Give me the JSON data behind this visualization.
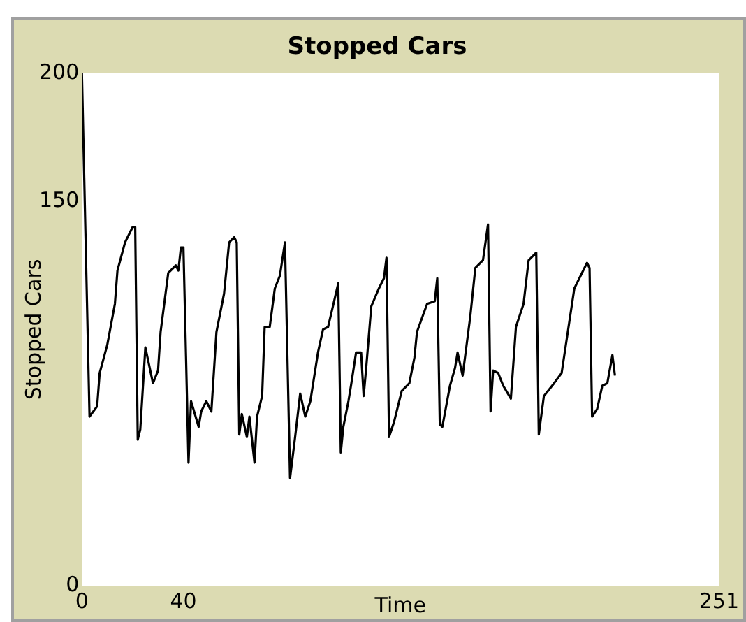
{
  "chart_data": {
    "type": "line",
    "title": "Stopped Cars",
    "xlabel": "Time",
    "ylabel": "Stopped Cars",
    "xlim": [
      0,
      251
    ],
    "xticks": [
      0,
      40,
      251
    ],
    "ylim": [
      0,
      200
    ],
    "yticks": [
      0,
      150,
      200
    ],
    "grid": false,
    "legend": false,
    "marker": "none",
    "line_style": "solid",
    "series": [
      {
        "color": "#000000",
        "x": [
          0,
          3,
          6,
          7,
          10,
          13,
          14,
          17,
          20,
          21,
          22,
          23,
          25,
          28,
          30,
          31,
          34,
          37,
          38,
          39,
          40,
          42,
          43,
          46,
          47,
          49,
          51,
          53,
          56,
          58,
          60,
          61,
          62,
          63,
          65,
          66,
          68,
          69,
          71,
          72,
          74,
          76,
          78,
          80,
          82,
          84,
          86,
          88,
          90,
          93,
          95,
          97,
          101,
          102,
          103,
          105,
          106,
          108,
          110,
          111,
          112,
          114,
          117,
          119,
          120,
          121,
          123,
          126,
          129,
          131,
          132,
          136,
          139,
          140,
          141,
          142,
          145,
          147,
          148,
          150,
          153,
          155,
          158,
          160,
          161,
          162,
          164,
          166,
          169,
          171,
          174,
          176,
          179,
          180,
          182,
          186,
          189,
          194,
          199,
          200,
          201,
          203,
          205,
          207,
          209,
          210
        ],
        "values": [
          200,
          66,
          70,
          83,
          94,
          110,
          123,
          134,
          140,
          140,
          57,
          61,
          93,
          79,
          84,
          99,
          122,
          125,
          123,
          132,
          132,
          48,
          72,
          62,
          68,
          72,
          68,
          99,
          114,
          134,
          136,
          134,
          59,
          67,
          58,
          66,
          48,
          66,
          74,
          101,
          101,
          116,
          121,
          134,
          42,
          58,
          75,
          66,
          72,
          91,
          100,
          101,
          118,
          52,
          62,
          72,
          78,
          91,
          91,
          74,
          85,
          109,
          116,
          120,
          128,
          58,
          64,
          76,
          79,
          89,
          99,
          110,
          111,
          120,
          63,
          62,
          78,
          85,
          91,
          82,
          105,
          124,
          127,
          141,
          68,
          84,
          83,
          78,
          73,
          101,
          110,
          127,
          130,
          59,
          74,
          79,
          83,
          116,
          126,
          124,
          66,
          69,
          78,
          79,
          90,
          82
        ]
      }
    ]
  }
}
